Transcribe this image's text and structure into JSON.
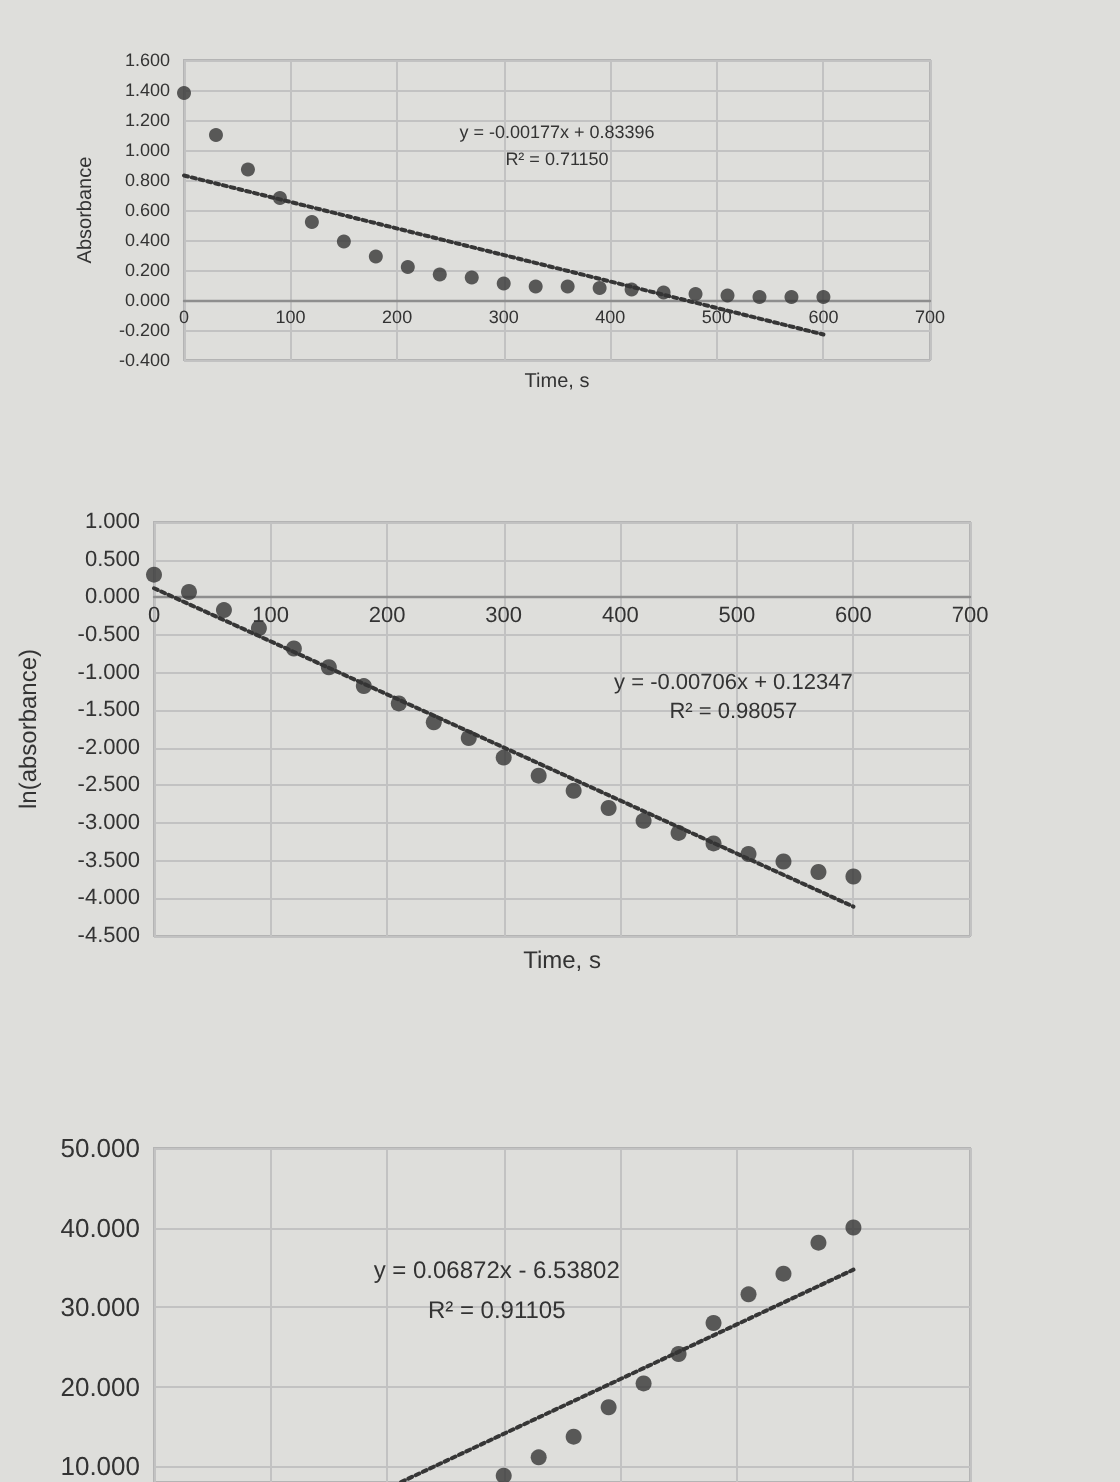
{
  "chart_data": [
    {
      "type": "scatter",
      "xlabel": "Time, s",
      "ylabel": "Absorbance",
      "annotations": [
        "y = -0.00177x + 0.83396",
        "R² = 0.71150"
      ],
      "xlim": [
        0,
        700
      ],
      "xticks": [
        0,
        100,
        200,
        300,
        400,
        500,
        600,
        700
      ],
      "ylim": [
        -0.4,
        1.6
      ],
      "yticks": [
        {
          "value": -0.4,
          "label": "-0.400"
        },
        {
          "value": -0.2,
          "label": "-0.200"
        },
        {
          "value": 0,
          "label": "0.000"
        },
        {
          "value": 0.2,
          "label": "0.200"
        },
        {
          "value": 0.4,
          "label": "0.400"
        },
        {
          "value": 0.6,
          "label": "0.600"
        },
        {
          "value": 0.8,
          "label": "0.800"
        },
        {
          "value": 1.0,
          "label": "1.000"
        },
        {
          "value": 1.2,
          "label": "1.200"
        },
        {
          "value": 1.4,
          "label": "1.400"
        },
        {
          "value": 1.6,
          "label": "1.600"
        }
      ],
      "grid": true,
      "marker": "circle",
      "series": [
        {
          "color": "#363636",
          "x": [
            0,
            30,
            60,
            90,
            120,
            150,
            180,
            210,
            240,
            270,
            300,
            330,
            360,
            390,
            420,
            450,
            480,
            510,
            540,
            570,
            600
          ],
          "values": [
            1.38,
            1.1,
            0.87,
            0.68,
            0.52,
            0.39,
            0.29,
            0.22,
            0.17,
            0.15,
            0.11,
            0.09,
            0.09,
            0.08,
            0.07,
            0.05,
            0.04,
            0.03,
            0.02,
            0.02,
            0.02
          ]
        },
        {
          "type": "line",
          "color": "#363636",
          "marker": "none",
          "line_style": "dotted",
          "x": [
            0,
            600
          ],
          "values": [
            0.83,
            -0.23
          ]
        }
      ]
    },
    {
      "type": "scatter",
      "xlabel": "Time, s",
      "ylabel": "ln(absorbance)",
      "annotations": [
        "y = -0.00706x + 0.12347",
        "R² = 0.98057"
      ],
      "xlim": [
        0,
        700
      ],
      "xticks": [
        0,
        100,
        200,
        300,
        400,
        500,
        600,
        700
      ],
      "ylim": [
        -4.5,
        1.0
      ],
      "yticks": [
        {
          "value": -4.5,
          "label": "-4.500"
        },
        {
          "value": -4.0,
          "label": "-4.000"
        },
        {
          "value": -3.5,
          "label": "-3.500"
        },
        {
          "value": -3.0,
          "label": "-3.000"
        },
        {
          "value": -2.5,
          "label": "-2.500"
        },
        {
          "value": -2.0,
          "label": "-2.000"
        },
        {
          "value": -1.5,
          "label": "-1.500"
        },
        {
          "value": -1.0,
          "label": "-1.000"
        },
        {
          "value": -0.5,
          "label": "-0.500"
        },
        {
          "value": 0,
          "label": "0.000"
        },
        {
          "value": 0.5,
          "label": "0.500"
        },
        {
          "value": 1.0,
          "label": "1.000"
        }
      ],
      "grid": true,
      "marker": "circle",
      "series": [
        {
          "color": "#363636",
          "x": [
            0,
            30,
            60,
            90,
            120,
            150,
            180,
            210,
            240,
            270,
            300,
            330,
            360,
            390,
            420,
            450,
            480,
            510,
            540,
            570,
            600
          ],
          "values": [
            0.3,
            0.07,
            -0.17,
            -0.41,
            -0.68,
            -0.93,
            -1.18,
            -1.41,
            -1.66,
            -1.87,
            -2.13,
            -2.37,
            -2.57,
            -2.8,
            -2.97,
            -3.13,
            -3.27,
            -3.41,
            -3.51,
            -3.65,
            -3.71
          ]
        },
        {
          "type": "line",
          "color": "#363636",
          "marker": "none",
          "line_style": "dotted",
          "x": [
            0,
            600
          ],
          "values": [
            0.12,
            -4.11
          ]
        }
      ]
    },
    {
      "type": "scatter",
      "annotations": [
        "y = 0.06872x - 6.53802",
        "R² = 0.91105"
      ],
      "xlim": [
        0,
        700
      ],
      "xticks": [
        0,
        100,
        200,
        300,
        400,
        500,
        600,
        700
      ],
      "ylim": [
        8,
        50
      ],
      "yticks": [
        {
          "value": 10,
          "label": "10.000"
        },
        {
          "value": 20,
          "label": "20.000"
        },
        {
          "value": 30,
          "label": "30.000"
        },
        {
          "value": 40,
          "label": "40.000"
        },
        {
          "value": 50,
          "label": "50.000"
        }
      ],
      "tick_labels": "y",
      "grid": true,
      "marker": "circle",
      "series": [
        {
          "color": "#363636",
          "x": [
            300,
            330,
            360,
            390,
            420,
            450,
            480,
            510,
            540,
            570,
            600
          ],
          "values": [
            8.8,
            11.1,
            13.7,
            17.4,
            20.4,
            24.1,
            28.0,
            31.6,
            34.2,
            38.1,
            40.0
          ]
        },
        {
          "type": "line",
          "color": "#363636",
          "marker": "none",
          "line_style": "dotted",
          "x": [
            212,
            600
          ],
          "values": [
            8.0,
            34.7
          ]
        }
      ]
    }
  ]
}
